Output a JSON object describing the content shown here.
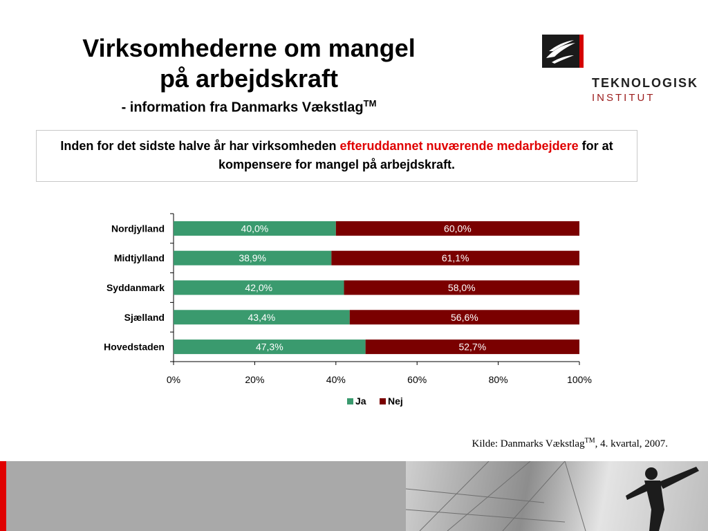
{
  "title": {
    "line1": "Virksomhederne om mangel",
    "line2": "på arbejdskraft",
    "sub": "- information fra Danmarks Vækstlag",
    "sub_sup": "TM"
  },
  "logo": {
    "line1": "TEKNOLOGISK",
    "line2": "INSTITUT",
    "icon": "teknologisk-institut-logo"
  },
  "statement": {
    "part1": "Inden for det sidste halve år har virksomheden ",
    "highlight": "efteruddannet nuværende medarbejdere",
    "part2": " for at kompensere for mangel på arbejdskraft.",
    "highlight_color": "#e00000"
  },
  "chart_data": {
    "type": "bar",
    "orientation": "horizontal",
    "stacked": true,
    "categories": [
      "Nordjylland",
      "Midtjylland",
      "Syddanmark",
      "Sjælland",
      "Hovedstaden"
    ],
    "series": [
      {
        "name": "Ja",
        "color": "#3a9a6e",
        "values": [
          40.0,
          38.9,
          42.0,
          43.4,
          47.3
        ],
        "labels": [
          "40,0%",
          "38,9%",
          "42,0%",
          "43,4%",
          "47,3%"
        ]
      },
      {
        "name": "Nej",
        "color": "#7a0000",
        "values": [
          60.0,
          61.1,
          58.0,
          56.6,
          52.7
        ],
        "labels": [
          "60,0%",
          "61,1%",
          "58,0%",
          "56,6%",
          "52,7%"
        ]
      }
    ],
    "xlim": [
      0,
      100
    ],
    "xticks": [
      "0%",
      "20%",
      "40%",
      "60%",
      "80%",
      "100%"
    ],
    "legend_position": "bottom"
  },
  "source": {
    "text_before": "Kilde: Danmarks Vækstlag",
    "sup": "TM",
    "text_after": ", 4. kvartal, 2007."
  }
}
